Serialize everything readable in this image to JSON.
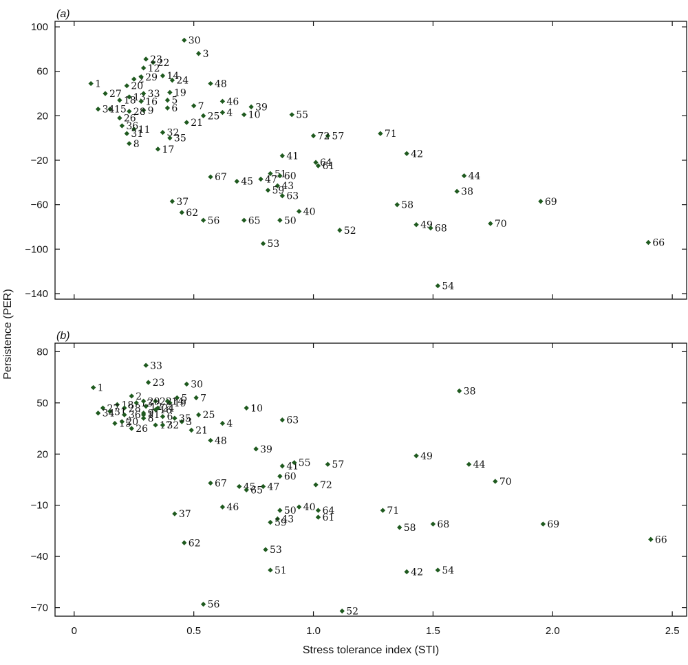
{
  "figure": {
    "x_axis_label": "Stress tolerance index (STI)",
    "y_axis_label": "Persistence (PER)",
    "marker_color": "#1f5a1f"
  },
  "chart_data": [
    {
      "type": "scatter",
      "panel": "(a)",
      "xlim": [
        -0.08,
        2.56
      ],
      "ylim": [
        -145,
        105
      ],
      "xticks": [
        0,
        0.5,
        1.0,
        1.5,
        2.0,
        2.5
      ],
      "xtick_labels": [
        "0",
        "0.5",
        "1.0",
        "1.5",
        "2.0",
        "2.5"
      ],
      "yticks": [
        100,
        60,
        20,
        -20,
        -60,
        -100,
        -140
      ],
      "ytick_labels": [
        "100",
        "60",
        "20",
        "−20",
        "−60",
        "−100",
        "−140"
      ],
      "points": [
        {
          "id": "1",
          "x": 0.07,
          "y": 49
        },
        {
          "id": "2",
          "x": 0.25,
          "y": 53
        },
        {
          "id": "3",
          "x": 0.52,
          "y": 76
        },
        {
          "id": "4",
          "x": 0.62,
          "y": 23
        },
        {
          "id": "5",
          "x": 0.39,
          "y": 34
        },
        {
          "id": "6",
          "x": 0.39,
          "y": 27
        },
        {
          "id": "7",
          "x": 0.5,
          "y": 29
        },
        {
          "id": "8",
          "x": 0.23,
          "y": -5
        },
        {
          "id": "9",
          "x": 0.29,
          "y": 25
        },
        {
          "id": "10",
          "x": 0.71,
          "y": 21
        },
        {
          "id": "11",
          "x": 0.25,
          "y": 8
        },
        {
          "id": "12",
          "x": 0.29,
          "y": 63
        },
        {
          "id": "13",
          "x": 0.23,
          "y": 37
        },
        {
          "id": "14",
          "x": 0.37,
          "y": 56
        },
        {
          "id": "15",
          "x": 0.15,
          "y": 26
        },
        {
          "id": "16",
          "x": 0.28,
          "y": 33
        },
        {
          "id": "17",
          "x": 0.35,
          "y": -10
        },
        {
          "id": "18",
          "x": 0.19,
          "y": 34
        },
        {
          "id": "19",
          "x": 0.4,
          "y": 41
        },
        {
          "id": "20",
          "x": 0.22,
          "y": 47
        },
        {
          "id": "21",
          "x": 0.47,
          "y": 14
        },
        {
          "id": "22",
          "x": 0.33,
          "y": 68
        },
        {
          "id": "23",
          "x": 0.3,
          "y": 71
        },
        {
          "id": "24",
          "x": 0.41,
          "y": 52
        },
        {
          "id": "25",
          "x": 0.54,
          "y": 20
        },
        {
          "id": "26",
          "x": 0.19,
          "y": 18
        },
        {
          "id": "27",
          "x": 0.13,
          "y": 40
        },
        {
          "id": "28",
          "x": 0.23,
          "y": 24
        },
        {
          "id": "29",
          "x": 0.28,
          "y": 55
        },
        {
          "id": "31",
          "x": 0.22,
          "y": 4
        },
        {
          "id": "32",
          "x": 0.37,
          "y": 5
        },
        {
          "id": "33",
          "x": 0.29,
          "y": 40
        },
        {
          "id": "34",
          "x": 0.1,
          "y": 26
        },
        {
          "id": "35",
          "x": 0.4,
          "y": 0
        },
        {
          "id": "36",
          "x": 0.2,
          "y": 11
        },
        {
          "id": "30",
          "x": 0.46,
          "y": 88
        },
        {
          "id": "37",
          "x": 0.41,
          "y": -57
        },
        {
          "id": "38",
          "x": 1.6,
          "y": -48
        },
        {
          "id": "39",
          "x": 0.74,
          "y": 28
        },
        {
          "id": "40",
          "x": 0.94,
          "y": -66
        },
        {
          "id": "41",
          "x": 0.87,
          "y": -16
        },
        {
          "id": "42",
          "x": 1.39,
          "y": -14
        },
        {
          "id": "43",
          "x": 0.85,
          "y": -43
        },
        {
          "id": "44",
          "x": 1.63,
          "y": -34
        },
        {
          "id": "45",
          "x": 0.68,
          "y": -39
        },
        {
          "id": "46",
          "x": 0.62,
          "y": 33
        },
        {
          "id": "47",
          "x": 0.78,
          "y": -37
        },
        {
          "id": "48",
          "x": 0.57,
          "y": 49
        },
        {
          "id": "49",
          "x": 1.43,
          "y": -78
        },
        {
          "id": "50",
          "x": 0.86,
          "y": -74
        },
        {
          "id": "51",
          "x": 0.82,
          "y": -32
        },
        {
          "id": "52",
          "x": 1.11,
          "y": -83
        },
        {
          "id": "53",
          "x": 0.79,
          "y": -95
        },
        {
          "id": "54",
          "x": 1.52,
          "y": -133
        },
        {
          "id": "55",
          "x": 0.91,
          "y": 21
        },
        {
          "id": "56",
          "x": 0.54,
          "y": -74
        },
        {
          "id": "57",
          "x": 1.06,
          "y": 2
        },
        {
          "id": "58",
          "x": 1.35,
          "y": -60
        },
        {
          "id": "59",
          "x": 0.81,
          "y": -47
        },
        {
          "id": "60",
          "x": 0.86,
          "y": -34
        },
        {
          "id": "61",
          "x": 1.02,
          "y": -25
        },
        {
          "id": "62",
          "x": 0.45,
          "y": -67
        },
        {
          "id": "63",
          "x": 0.87,
          "y": -52
        },
        {
          "id": "64",
          "x": 1.01,
          "y": -22
        },
        {
          "id": "65",
          "x": 0.71,
          "y": -74
        },
        {
          "id": "66",
          "x": 2.4,
          "y": -94
        },
        {
          "id": "67",
          "x": 0.57,
          "y": -35
        },
        {
          "id": "68",
          "x": 1.49,
          "y": -81
        },
        {
          "id": "69",
          "x": 1.95,
          "y": -57
        },
        {
          "id": "70",
          "x": 1.74,
          "y": -77
        },
        {
          "id": "71",
          "x": 1.28,
          "y": 4
        },
        {
          "id": "72",
          "x": 1.0,
          "y": 2
        }
      ]
    },
    {
      "type": "scatter",
      "panel": "(b)",
      "xlim": [
        -0.08,
        2.56
      ],
      "ylim": [
        -75,
        85
      ],
      "xticks": [
        0,
        0.5,
        1.0,
        1.5,
        2.0,
        2.5
      ],
      "xtick_labels": [
        "0",
        "0.5",
        "1.0",
        "1.5",
        "2.0",
        "2.5"
      ],
      "yticks": [
        80,
        50,
        20,
        -10,
        -40,
        -70
      ],
      "ytick_labels": [
        "80",
        "50",
        "20",
        "−10",
        "−40",
        "−70"
      ],
      "points": [
        {
          "id": "1",
          "x": 0.08,
          "y": 59
        },
        {
          "id": "2",
          "x": 0.24,
          "y": 54
        },
        {
          "id": "3",
          "x": 0.45,
          "y": 39
        },
        {
          "id": "4",
          "x": 0.62,
          "y": 38
        },
        {
          "id": "5",
          "x": 0.43,
          "y": 53
        },
        {
          "id": "6",
          "x": 0.37,
          "y": 42
        },
        {
          "id": "7",
          "x": 0.51,
          "y": 53
        },
        {
          "id": "8",
          "x": 0.29,
          "y": 41
        },
        {
          "id": "9",
          "x": 0.29,
          "y": 44
        },
        {
          "id": "10",
          "x": 0.72,
          "y": 47
        },
        {
          "id": "11",
          "x": 0.29,
          "y": 43
        },
        {
          "id": "12",
          "x": 0.3,
          "y": 48
        },
        {
          "id": "13",
          "x": 0.26,
          "y": 50
        },
        {
          "id": "14",
          "x": 0.39,
          "y": 51
        },
        {
          "id": "15",
          "x": 0.17,
          "y": 38
        },
        {
          "id": "16",
          "x": 0.34,
          "y": 46
        },
        {
          "id": "17",
          "x": 0.34,
          "y": 37
        },
        {
          "id": "18",
          "x": 0.18,
          "y": 49
        },
        {
          "id": "19",
          "x": 0.4,
          "y": 50
        },
        {
          "id": "20",
          "x": 0.2,
          "y": 39
        },
        {
          "id": "21",
          "x": 0.49,
          "y": 34
        },
        {
          "id": "22",
          "x": 0.34,
          "y": 51
        },
        {
          "id": "23",
          "x": 0.31,
          "y": 62
        },
        {
          "id": "24",
          "x": 0.35,
          "y": 47
        },
        {
          "id": "25",
          "x": 0.52,
          "y": 43
        },
        {
          "id": "26",
          "x": 0.24,
          "y": 35
        },
        {
          "id": "27",
          "x": 0.12,
          "y": 47
        },
        {
          "id": "28",
          "x": 0.21,
          "y": 47
        },
        {
          "id": "29",
          "x": 0.29,
          "y": 51
        },
        {
          "id": "30",
          "x": 0.47,
          "y": 61
        },
        {
          "id": "31",
          "x": 0.15,
          "y": 45
        },
        {
          "id": "32",
          "x": 0.37,
          "y": 37
        },
        {
          "id": "33",
          "x": 0.3,
          "y": 72
        },
        {
          "id": "34",
          "x": 0.1,
          "y": 44
        },
        {
          "id": "35",
          "x": 0.42,
          "y": 41
        },
        {
          "id": "36",
          "x": 0.21,
          "y": 43
        },
        {
          "id": "37",
          "x": 0.42,
          "y": -15
        },
        {
          "id": "38",
          "x": 1.61,
          "y": 57
        },
        {
          "id": "39",
          "x": 0.76,
          "y": 23
        },
        {
          "id": "40",
          "x": 0.94,
          "y": -11
        },
        {
          "id": "41",
          "x": 0.87,
          "y": 13
        },
        {
          "id": "42",
          "x": 1.39,
          "y": -49
        },
        {
          "id": "43",
          "x": 0.85,
          "y": -18
        },
        {
          "id": "44",
          "x": 1.65,
          "y": 14
        },
        {
          "id": "45",
          "x": 0.69,
          "y": 1
        },
        {
          "id": "46",
          "x": 0.62,
          "y": -11
        },
        {
          "id": "47",
          "x": 0.79,
          "y": 1
        },
        {
          "id": "48",
          "x": 0.57,
          "y": 28
        },
        {
          "id": "49",
          "x": 1.43,
          "y": 19
        },
        {
          "id": "50",
          "x": 0.86,
          "y": -13
        },
        {
          "id": "51",
          "x": 0.82,
          "y": -48
        },
        {
          "id": "52",
          "x": 1.12,
          "y": -72
        },
        {
          "id": "53",
          "x": 0.8,
          "y": -36
        },
        {
          "id": "54",
          "x": 1.52,
          "y": -48
        },
        {
          "id": "55",
          "x": 0.92,
          "y": 15
        },
        {
          "id": "56",
          "x": 0.54,
          "y": -68
        },
        {
          "id": "57",
          "x": 1.06,
          "y": 14
        },
        {
          "id": "58",
          "x": 1.36,
          "y": -23
        },
        {
          "id": "59",
          "x": 0.82,
          "y": -20
        },
        {
          "id": "60",
          "x": 0.86,
          "y": 7
        },
        {
          "id": "61",
          "x": 1.02,
          "y": -17
        },
        {
          "id": "62",
          "x": 0.46,
          "y": -32
        },
        {
          "id": "63",
          "x": 0.87,
          "y": 40
        },
        {
          "id": "64",
          "x": 1.02,
          "y": -13
        },
        {
          "id": "65",
          "x": 0.72,
          "y": -1
        },
        {
          "id": "66",
          "x": 2.41,
          "y": -30
        },
        {
          "id": "67",
          "x": 0.57,
          "y": 3
        },
        {
          "id": "68",
          "x": 1.5,
          "y": -21
        },
        {
          "id": "69",
          "x": 1.96,
          "y": -21
        },
        {
          "id": "70",
          "x": 1.76,
          "y": 4
        },
        {
          "id": "71",
          "x": 1.29,
          "y": -13
        },
        {
          "id": "72",
          "x": 1.01,
          "y": 2
        }
      ]
    }
  ]
}
